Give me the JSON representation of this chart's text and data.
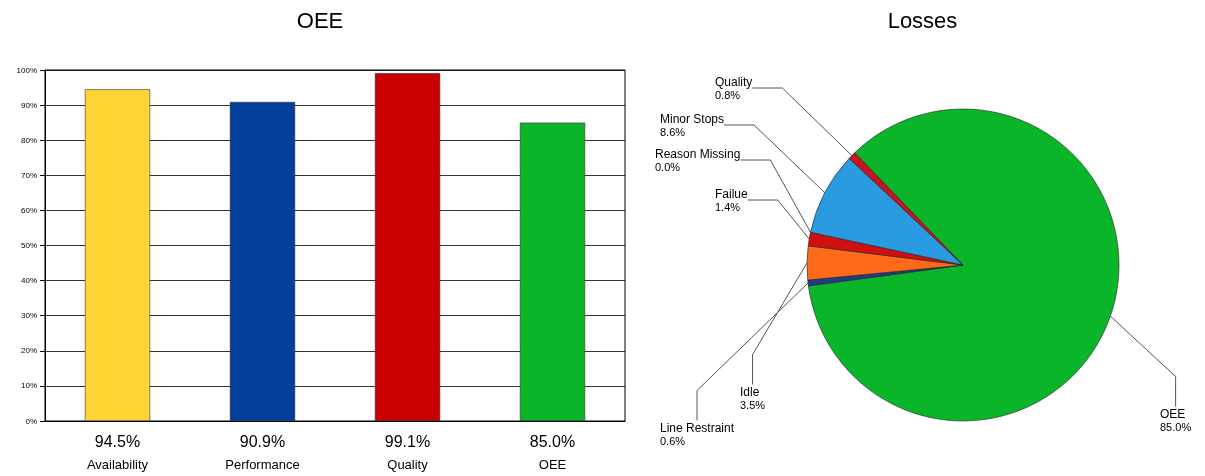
{
  "chart_data": [
    {
      "type": "bar",
      "title": "OEE",
      "categories": [
        "Availability",
        "Performance",
        "Quality",
        "OEE"
      ],
      "values": [
        94.5,
        90.9,
        99.1,
        85.0
      ],
      "colors": [
        "#fcd535",
        "#023f9c",
        "#c80000",
        "#0bb52a"
      ],
      "value_labels": [
        "94.5%",
        "90.9%",
        "99.1%",
        "85.0%"
      ],
      "ylim": [
        0,
        100
      ],
      "yticks": [
        {
          "value": 0,
          "label": "0%"
        },
        {
          "value": 10,
          "label": "10%"
        },
        {
          "value": 20,
          "label": "20%"
        },
        {
          "value": 30,
          "label": "30%"
        },
        {
          "value": 40,
          "label": "40%"
        },
        {
          "value": 50,
          "label": "50%"
        },
        {
          "value": 60,
          "label": "60%"
        },
        {
          "value": 70,
          "label": "70%"
        },
        {
          "value": 80,
          "label": "80%"
        },
        {
          "value": 90,
          "label": "90%"
        },
        {
          "value": 100,
          "label": "100%"
        }
      ],
      "grid": "y"
    },
    {
      "type": "pie",
      "title": "Losses",
      "categories": [
        "OEE",
        "Line Restraint",
        "Idle",
        "Failue",
        "Reason Missing",
        "Minor Stops",
        "Quality"
      ],
      "values": [
        85.0,
        0.6,
        3.5,
        1.4,
        0.0,
        8.6,
        0.8
      ],
      "colors": [
        "#0bb52a",
        "#1f3c88",
        "#ff6a1a",
        "#d01010",
        "#888888",
        "#2a9be0",
        "#c8141e"
      ],
      "value_labels": [
        "85.0%",
        "0.6%",
        "3.5%",
        "1.4%",
        "0.0%",
        "8.6%",
        "0.8%"
      ]
    }
  ]
}
